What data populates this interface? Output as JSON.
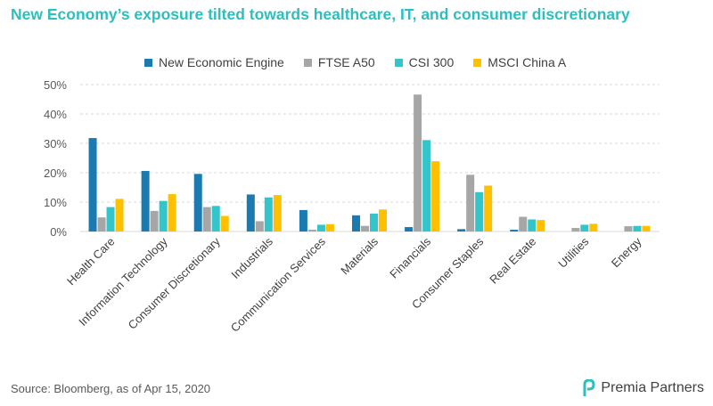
{
  "title": "New Economy’s exposure tilted towards healthcare, IT, and consumer discretionary",
  "source": "Source: Bloomberg, as of Apr 15, 2020",
  "logo_text": "Premia Partners",
  "colors": {
    "title": "#2bbfbf",
    "New Economic Engine": "#1b7bb0",
    "FTSE A50": "#a6a6a6",
    "CSI 300": "#33c5c9",
    "MSCI China A": "#ffc000"
  },
  "chart_data": {
    "type": "bar",
    "categories": [
      "Health Care",
      "Information Technology",
      "Consumer Discretionary",
      "Industrials",
      "Communication Services",
      "Materials",
      "Financials",
      "Consumer Staples",
      "Real Estate",
      "Utilities",
      "Energy"
    ],
    "series": [
      {
        "name": "New Economic Engine",
        "values": [
          31.8,
          20.6,
          19.6,
          12.6,
          7.3,
          5.5,
          1.5,
          0.8,
          0.6,
          0.0,
          0.0
        ]
      },
      {
        "name": "FTSE A50",
        "values": [
          4.8,
          7.0,
          8.3,
          3.5,
          0.6,
          1.9,
          46.6,
          19.3,
          5.0,
          1.2,
          1.8
        ]
      },
      {
        "name": "CSI 300",
        "values": [
          8.3,
          10.4,
          8.7,
          11.6,
          2.3,
          6.1,
          31.1,
          13.4,
          4.1,
          2.3,
          1.9
        ]
      },
      {
        "name": "MSCI China A",
        "values": [
          11.1,
          12.7,
          5.3,
          12.4,
          2.5,
          7.5,
          23.9,
          15.6,
          3.9,
          2.6,
          1.9
        ]
      }
    ],
    "ylim": [
      0,
      50
    ],
    "yticks": [
      "0%",
      "10%",
      "20%",
      "30%",
      "40%",
      "50%"
    ],
    "grid": true,
    "legend": "top"
  }
}
